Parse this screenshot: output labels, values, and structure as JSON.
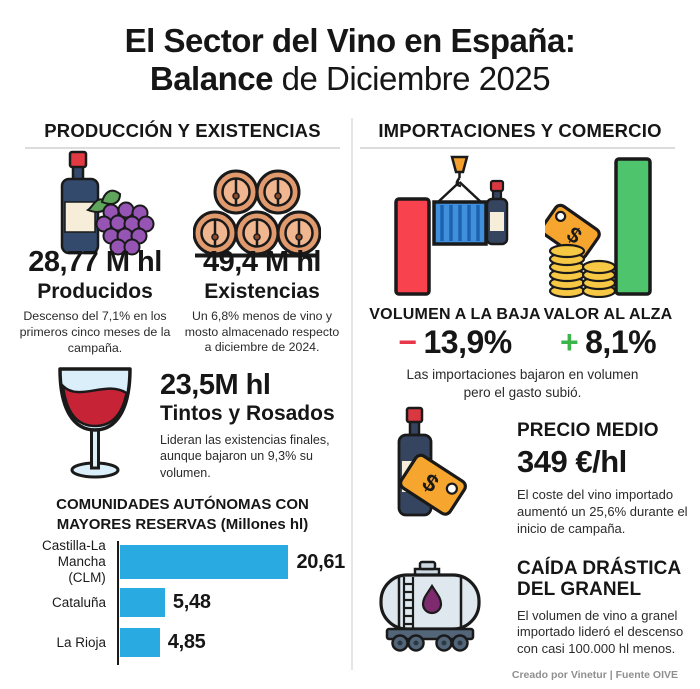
{
  "title": {
    "line1": "El Sector del Vino en España:",
    "line2_bold": "Balance",
    "line2_rest": " de Diciembre 2025"
  },
  "left": {
    "header": "PRODUCCIÓN Y EXISTENCIAS",
    "produced": {
      "value": "28,77 M hl",
      "label": "Producidos",
      "desc": "Descenso del 7,1% en los primeros cinco meses de la campaña."
    },
    "stocks": {
      "value": "49,4 M hl",
      "label": "Existencias",
      "desc": "Un 6,8% menos de vino y mosto almacenado respecto a diciembre de 2024."
    },
    "reds": {
      "value": "23,5M hl",
      "label": "Tintos y Rosados",
      "desc": "Lideran las existencias finales, aunque bajaron un 9,3% su volumen."
    }
  },
  "chart_data": {
    "type": "bar",
    "orientation": "horizontal",
    "title": "COMUNIDADES AUTÓNOMAS CON MAYORES RESERVAS (Millones hl)",
    "title_lines": [
      "COMUNIDADES AUTÓNOMAS CON",
      "MAYORES RESERVAS (Millones hl)"
    ],
    "categories": [
      "Castilla-La Mancha (CLM)",
      "Cataluña",
      "La Rioja"
    ],
    "values": [
      20.61,
      5.48,
      4.85
    ],
    "value_labels": [
      "20,61",
      "5,48",
      "4,85"
    ],
    "unit": "Millones hl",
    "xlim": [
      0,
      20.61
    ],
    "bar_color": "#29abe2",
    "legend": "none",
    "grid": "off"
  },
  "right": {
    "header": "IMPORTACIONES Y COMERCIO",
    "volume": {
      "label": "VOLUMEN A LA BAJA",
      "sign": "−",
      "value": "13,9%"
    },
    "value_up": {
      "label": "VALOR AL ALZA",
      "sign": "+",
      "value": "8,1%"
    },
    "note": "Las importaciones bajaron en volumen pero el gasto subió.",
    "price": {
      "label": "PRECIO MEDIO",
      "value": "349 €/hl",
      "desc": "El coste del vino importado aumentó un 25,6% durante el inicio de campaña."
    },
    "bulk": {
      "label_line1": "CAÍDA DRÁSTICA",
      "label_line2": "DEL GRANEL",
      "desc": "El volumen de vino a granel importado lideró el descenso con casi 100.000 hl menos."
    }
  },
  "footer": {
    "credit": "Creado por Vinetur | Fuente OIVE"
  },
  "icons": {
    "dollar_symbol": "$"
  },
  "colors": {
    "bar_blue": "#29abe2",
    "negative_red": "#e8364b",
    "positive_green": "#3bb54a",
    "bar_red": "#f8434e",
    "bar_green": "#4ec46c",
    "tag_orange": "#f6a62f",
    "coin_gold": "#f7c844"
  }
}
